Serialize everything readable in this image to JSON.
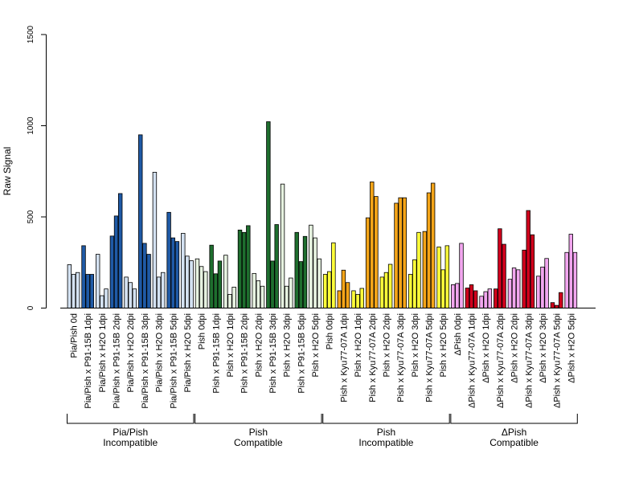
{
  "chart_data": {
    "type": "bar",
    "title": "",
    "xlabel": "",
    "ylabel": "Raw Signal",
    "ylim": [
      0,
      1500
    ],
    "yticks": [
      0,
      500,
      1000,
      1500
    ],
    "grid": false,
    "legend": "none",
    "categories": [
      "Pia/Pish 0d",
      "Pia/Pish x P91-15B 1dpi",
      "Pia/Pish x H2O 1dpi",
      "Pia/Pish x P91-15B 2dpi",
      "Pia/Pish x H2O 2dpi",
      "Pia/Pish x P91-15B 3dpi",
      "Pia/Pish x H2O 3dpi",
      "Pia/Pish x P91-15B 5dpi",
      "Pia/Pish x H2O 5dpi",
      "Pish 0dpi",
      "Pish x P91-15B 1dpi",
      "Pish x H2O 1dpi",
      "Pish x P91-15B 2dpi",
      "Pish x H2O 2dpi",
      "Pish x P91-15B 3dpi",
      "Pish x H2O 3dpi",
      "Pish x P91-15B 5dpi",
      "Pish x H2O 5dpi",
      "Pish 0dpi",
      "Pish x Kyu77-07A 1dpi",
      "Pish x H2O 1dpi",
      "Pish x Kyu77-07A 2dpi",
      "Pish x H2O 2dpi",
      "Pish x Kyu77-07A 3dpi",
      "Pish x H2O 3dpi",
      "Pish x Kyu77-07A 5dpi",
      "Pish x H2O 5dpi",
      "ΔPish 0dpi",
      "ΔPish x Kyu77-07A 1dpi",
      "ΔPish x H2O 1dpi",
      "ΔPish x Kyu77-07A 2dpi",
      "ΔPish x H2O 2dpi",
      "ΔPish x Kyu77-07A 3dpi",
      "ΔPish x H2O 3dpi",
      "ΔPish x Kyu77-07A 5dpi",
      "ΔPish x H2O 5dpi"
    ],
    "values": [
      [
        238,
        185,
        195
      ],
      [
        342,
        185,
        185
      ],
      [
        295,
        68,
        105
      ],
      [
        395,
        505,
        628
      ],
      [
        170,
        140,
        105
      ],
      [
        950,
        355,
        295
      ],
      [
        745,
        170,
        195
      ],
      [
        525,
        385,
        365
      ],
      [
        410,
        285,
        260
      ],
      [
        270,
        228,
        200
      ],
      [
        345,
        188,
        258
      ],
      [
        290,
        75,
        115
      ],
      [
        428,
        415,
        452
      ],
      [
        190,
        150,
        120
      ],
      [
        1022,
        258,
        458
      ],
      [
        680,
        120,
        165
      ],
      [
        415,
        255,
        393
      ],
      [
        455,
        385,
        270
      ],
      [
        185,
        200,
        358
      ],
      [
        95,
        208,
        140
      ],
      [
        95,
        75,
        108
      ],
      [
        495,
        692,
        612
      ],
      [
        170,
        195,
        240
      ],
      [
        575,
        605,
        605
      ],
      [
        185,
        265,
        415
      ],
      [
        420,
        632,
        685
      ],
      [
        335,
        210,
        342
      ],
      [
        128,
        135,
        355
      ],
      [
        110,
        128,
        95
      ],
      [
        65,
        90,
        105
      ],
      [
        105,
        435,
        350
      ],
      [
        158,
        220,
        210
      ],
      [
        318,
        535,
        402
      ],
      [
        175,
        225,
        272
      ],
      [
        30,
        15,
        85
      ],
      [
        305,
        405,
        305
      ]
    ],
    "bar_colors": [
      "#d4e2f2",
      "#1f5aa6",
      "#d4e2f2",
      "#1f5aa6",
      "#d4e2f2",
      "#1f5aa6",
      "#d4e2f2",
      "#1f5aa6",
      "#d4e2f2",
      "#e6f2e0",
      "#1e6e2e",
      "#e6f2e0",
      "#1e6e2e",
      "#e6f2e0",
      "#1e6e2e",
      "#e6f2e0",
      "#1e6e2e",
      "#e6f2e0",
      "#ffff3a",
      "#f5a518",
      "#ffff3a",
      "#f5a518",
      "#ffff3a",
      "#f5a518",
      "#ffff3a",
      "#f5a518",
      "#ffff3a",
      "#f2a6ef",
      "#d0001c",
      "#f2a6ef",
      "#d0001c",
      "#f2a6ef",
      "#d0001c",
      "#f2a6ef",
      "#d0001c",
      "#f2a6ef"
    ],
    "groups": [
      {
        "line1": "Pia/Pish",
        "line2": "Incompatible",
        "start": 0,
        "end": 8
      },
      {
        "line1": "Pish",
        "line2": "Compatible",
        "start": 9,
        "end": 17
      },
      {
        "line1": "Pish",
        "line2": "Incompatible",
        "start": 18,
        "end": 26
      },
      {
        "line1": "ΔPish",
        "line2": "Compatible",
        "start": 27,
        "end": 35
      }
    ]
  }
}
